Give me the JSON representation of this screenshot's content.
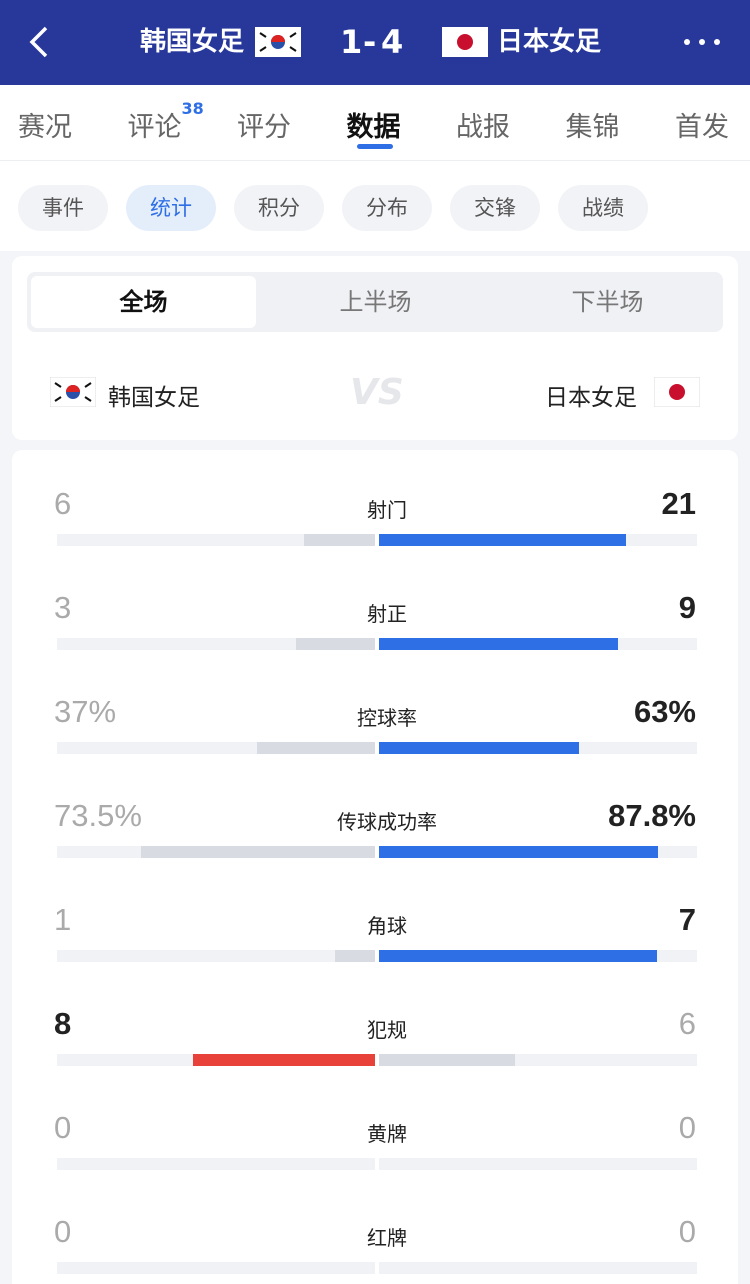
{
  "header": {
    "home": "韩国女足",
    "score": [
      1,
      4
    ],
    "away": "日本女足"
  },
  "tabs": [
    "赛况",
    "评论",
    "评分",
    "数据",
    "战报",
    "集锦",
    "首发"
  ],
  "comment_count": 38,
  "subtabs": [
    "事件",
    "统计",
    "积分",
    "分布",
    "交锋",
    "战绩"
  ],
  "periods": [
    "全场",
    "上半场",
    "下半场"
  ],
  "stats": [
    {
      "name": "射门",
      "home": 6,
      "away": 21
    },
    {
      "name": "射正",
      "home": 3,
      "away": 9
    },
    {
      "name": "控球率",
      "home": 37,
      "away": 63,
      "value_labels": [
        "37%",
        "63%"
      ]
    },
    {
      "name": "传球成功率",
      "home": 73.5,
      "away": 87.8,
      "value_labels": [
        "73.5%",
        "87.8%"
      ]
    },
    {
      "name": "角球",
      "home": 1,
      "away": 7
    },
    {
      "name": "犯规",
      "home": 8,
      "away": 6
    },
    {
      "name": "黄牌",
      "home": 0,
      "away": 0
    },
    {
      "name": "红牌",
      "home": 0,
      "away": 0
    }
  ]
}
